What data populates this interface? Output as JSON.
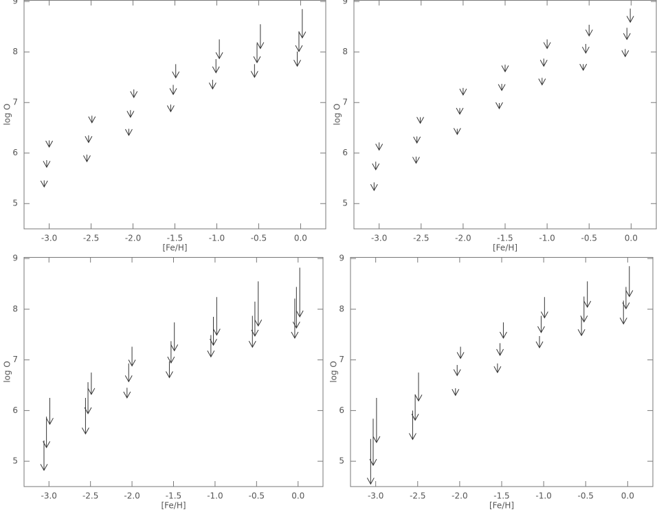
{
  "chart_data": [
    {
      "type": "scatter",
      "x_label": "[Fe/H]",
      "y_label": "log O",
      "color": "#333333",
      "xlim": [
        -3.3,
        0.3
      ],
      "ylim": [
        4.5,
        9.03
      ],
      "xticks": [
        {
          "value": -3.0,
          "label": "-3.0"
        },
        {
          "value": -2.5,
          "label": "-2.5"
        },
        {
          "value": -2.0,
          "label": "-2.0"
        },
        {
          "value": -1.5,
          "label": "-1.5"
        },
        {
          "value": -1.0,
          "label": "-1.0"
        },
        {
          "value": -0.5,
          "label": "-0.5"
        },
        {
          "value": 0.0,
          "label": "0.0"
        }
      ],
      "yticks": [
        5,
        6,
        7,
        8,
        9
      ],
      "x": [
        -3.06,
        -3.03,
        -3.0,
        -2.55,
        -2.53,
        -2.49,
        -2.05,
        -2.03,
        -1.99,
        -1.55,
        -1.52,
        -1.49,
        -1.05,
        -1.01,
        -0.97,
        -0.55,
        -0.52,
        -0.48,
        -0.04,
        -0.02,
        0.02
      ],
      "values": [
        5.46,
        5.86,
        6.25,
        5.97,
        6.35,
        6.74,
        6.48,
        6.85,
        7.26,
        6.96,
        7.35,
        7.76,
        7.45,
        7.86,
        8.25,
        7.76,
        8.17,
        8.55,
        8.01,
        8.41,
        8.85
      ],
      "limits": [
        5.33,
        5.72,
        6.12,
        5.83,
        6.21,
        6.6,
        6.35,
        6.71,
        7.1,
        6.82,
        7.16,
        7.49,
        7.27,
        7.59,
        7.87,
        7.5,
        7.79,
        8.07,
        7.72,
        8.01,
        8.28
      ]
    },
    {
      "type": "scatter",
      "x_label": "[Fe/H]",
      "y_label": "log O",
      "color": "#333333",
      "xlim": [
        -3.3,
        0.3
      ],
      "ylim": [
        4.5,
        9.03
      ],
      "xticks": [
        {
          "value": -3.0,
          "label": "-3.0"
        },
        {
          "value": -2.5,
          "label": "-2.5"
        },
        {
          "value": -2.0,
          "label": "-2.0"
        },
        {
          "value": -1.5,
          "label": "-1.5"
        },
        {
          "value": -1.0,
          "label": "-1.0"
        },
        {
          "value": -0.5,
          "label": "-0.5"
        },
        {
          "value": 0.0,
          "label": "0.0"
        }
      ],
      "yticks": [
        5,
        6,
        7,
        8,
        9
      ],
      "x": [
        -3.06,
        -3.04,
        -3.0,
        -2.56,
        -2.55,
        -2.51,
        -2.07,
        -2.04,
        -2.0,
        -1.57,
        -1.54,
        -1.5,
        -1.06,
        -1.04,
        -1.0,
        -0.57,
        -0.54,
        -0.5,
        -0.07,
        -0.05,
        -0.01
      ],
      "values": [
        5.42,
        5.83,
        6.21,
        5.93,
        6.33,
        6.71,
        6.48,
        6.89,
        7.29,
        6.99,
        7.37,
        7.75,
        7.49,
        7.87,
        8.25,
        7.76,
        8.16,
        8.54,
        8.06,
        8.48,
        8.86
      ],
      "limits": [
        5.26,
        5.67,
        6.06,
        5.8,
        6.2,
        6.59,
        6.37,
        6.77,
        7.15,
        6.88,
        7.24,
        7.61,
        7.35,
        7.72,
        8.07,
        7.64,
        7.98,
        8.32,
        7.91,
        8.25,
        8.59
      ]
    },
    {
      "type": "scatter",
      "x_label": "[Fe/H]",
      "y_label": "log O",
      "color": "#333333",
      "xlim": [
        -3.3,
        0.3
      ],
      "ylim": [
        4.5,
        9.03
      ],
      "xticks": [
        {
          "value": -3.0,
          "label": "-3.0"
        },
        {
          "value": -2.5,
          "label": "-2.5"
        },
        {
          "value": -2.0,
          "label": "-2.0"
        },
        {
          "value": -1.5,
          "label": "-1.5"
        },
        {
          "value": -1.0,
          "label": "-1.0"
        },
        {
          "value": -0.5,
          "label": "-0.5"
        },
        {
          "value": 0.0,
          "label": "0.0"
        }
      ],
      "yticks": [
        5,
        6,
        7,
        8,
        9
      ],
      "x": [
        -3.06,
        -3.03,
        -2.99,
        -2.56,
        -2.53,
        -2.49,
        -2.06,
        -2.04,
        -2.0,
        -1.55,
        -1.53,
        -1.49,
        -1.05,
        -1.02,
        -0.98,
        -0.55,
        -0.52,
        -0.48,
        -0.04,
        -0.02,
        0.02
      ],
      "values": [
        5.41,
        5.88,
        6.25,
        6.25,
        6.56,
        6.75,
        6.45,
        6.93,
        7.26,
        6.97,
        7.37,
        7.74,
        7.49,
        7.85,
        8.24,
        7.87,
        8.15,
        8.55,
        8.21,
        8.44,
        8.82
      ],
      "limits": [
        4.82,
        5.27,
        5.73,
        5.54,
        5.94,
        6.32,
        6.25,
        6.57,
        6.88,
        6.65,
        6.94,
        7.18,
        7.06,
        7.29,
        7.49,
        7.25,
        7.47,
        7.67,
        7.43,
        7.63,
        7.85
      ]
    },
    {
      "type": "scatter",
      "x_label": "[Fe/H]",
      "y_label": "log O",
      "color": "#333333",
      "xlim": [
        -3.3,
        0.3
      ],
      "ylim": [
        4.5,
        9.03
      ],
      "xticks": [
        {
          "value": -3.0,
          "label": "-3.0"
        },
        {
          "value": -2.5,
          "label": "-2.5"
        },
        {
          "value": -2.0,
          "label": "-2.0"
        },
        {
          "value": -1.5,
          "label": "-1.5"
        },
        {
          "value": -1.0,
          "label": "-1.0"
        },
        {
          "value": -0.5,
          "label": "-0.5"
        },
        {
          "value": 0.0,
          "label": "0.0"
        }
      ],
      "yticks": [
        5,
        6,
        7,
        8,
        9
      ],
      "x": [
        -3.06,
        -3.03,
        -2.99,
        -2.56,
        -2.53,
        -2.49,
        -2.05,
        -2.03,
        -1.99,
        -1.55,
        -1.52,
        -1.48,
        -1.05,
        -1.03,
        -0.99,
        -0.55,
        -0.52,
        -0.48,
        -0.05,
        -0.02,
        0.02
      ],
      "values": [
        5.44,
        5.84,
        6.25,
        6.0,
        6.32,
        6.75,
        6.44,
        6.9,
        7.26,
        6.93,
        7.33,
        7.74,
        7.47,
        7.87,
        8.24,
        7.85,
        8.25,
        8.55,
        8.17,
        8.44,
        8.85
      ],
      "limits": [
        4.55,
        4.92,
        5.37,
        5.43,
        5.81,
        6.19,
        6.3,
        6.69,
        7.03,
        6.75,
        7.09,
        7.43,
        7.24,
        7.54,
        7.83,
        7.48,
        7.75,
        8.04,
        7.71,
        8.01,
        8.25
      ]
    }
  ]
}
